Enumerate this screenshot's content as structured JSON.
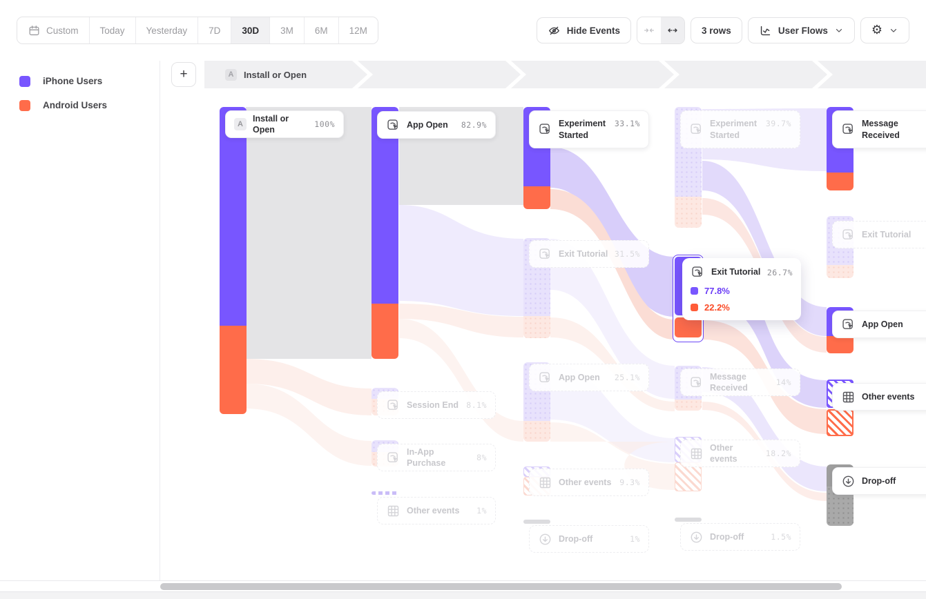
{
  "toolbar": {
    "date_ranges": [
      "Custom",
      "Today",
      "Yesterday",
      "7D",
      "30D",
      "3M",
      "6M",
      "12M"
    ],
    "active_range": "30D",
    "hide_events_label": "Hide Events",
    "rows_label": "3 rows",
    "view_label": "User Flows"
  },
  "legend": {
    "items": [
      {
        "label": "iPhone Users",
        "color": "#7856FF"
      },
      {
        "label": "Android Users",
        "color": "#FF6C4A"
      }
    ]
  },
  "path_header": {
    "add_label": "+",
    "step_badge": "A",
    "step_label": "Install or Open"
  },
  "colors": {
    "purple": "#7856FF",
    "orange": "#FF6C4A",
    "flow_gray": "#E4E4E4"
  },
  "nodes": {
    "install": {
      "badge": "A",
      "name": "Install or Open",
      "pct": "100%"
    },
    "app_open_2": {
      "name": "App Open",
      "pct": "82.9%"
    },
    "session_end": {
      "name": "Session End",
      "pct": "8.1%"
    },
    "in_app_purchase": {
      "name": "In-App Purchase",
      "pct": "8%"
    },
    "other_events_2": {
      "name": "Other events",
      "pct": "1%"
    },
    "experiment_started_3": {
      "name": "Experiment Started",
      "pct": "33.1%"
    },
    "exit_tutorial_3": {
      "name": "Exit Tutorial",
      "pct": "31.5%"
    },
    "app_open_3": {
      "name": "App Open",
      "pct": "25.1%"
    },
    "other_events_3": {
      "name": "Other events",
      "pct": "9.3%"
    },
    "drop_off_3": {
      "name": "Drop-off",
      "pct": "1%"
    },
    "experiment_started_4": {
      "name": "Experiment Started",
      "pct": "39.7%"
    },
    "exit_tutorial_4": {
      "name": "Exit Tutorial",
      "pct": "26.7%"
    },
    "message_received_4": {
      "name": "Message Received",
      "pct": "14%"
    },
    "other_events_4": {
      "name": "Other events",
      "pct": "18.2%"
    },
    "drop_off_4": {
      "name": "Drop-off",
      "pct": "1.5%"
    },
    "message_received_5": {
      "name": "Message Received"
    },
    "exit_tutorial_5": {
      "name": "Exit Tutorial"
    },
    "app_open_5": {
      "name": "App Open"
    },
    "other_events_5": {
      "name": "Other events"
    },
    "drop_off_5": {
      "name": "Drop-off"
    }
  },
  "tooltip": {
    "name": "Exit Tutorial",
    "pct": "26.7%",
    "breakdown": [
      {
        "pct": "77.8%",
        "color": "#7856FF"
      },
      {
        "pct": "22.2%",
        "color": "#FF5C38"
      }
    ]
  }
}
